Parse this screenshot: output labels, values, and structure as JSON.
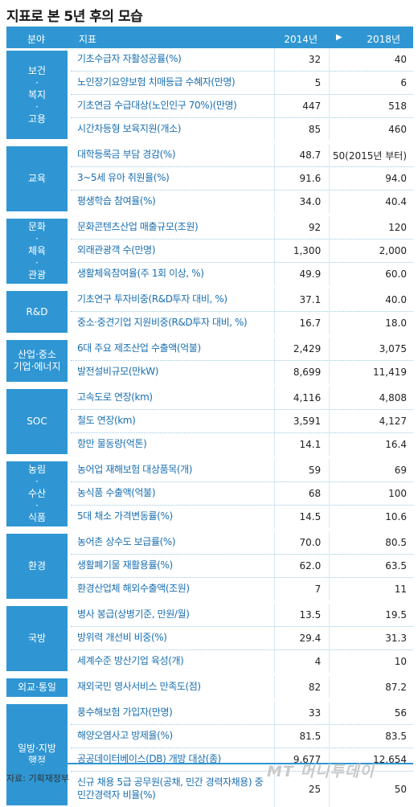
{
  "title": "지표로 본 5년 후의 모습",
  "header": {
    "field": "분야",
    "indicator": "지표",
    "y2014": "2014년",
    "arrow": "▶",
    "y2018": "2018년"
  },
  "groups": [
    {
      "category": "보건\n·\n복지\n·\n고용",
      "rows": [
        {
          "indicator": "기초수급자 자활성공률(%)",
          "v2014": "32",
          "v2018": "40"
        },
        {
          "indicator": "노인장기요양보험 치매등급 수혜자(만명)",
          "v2014": "5",
          "v2018": "6"
        },
        {
          "indicator": "기초연금 수급대상(노인인구 70%)(만명)",
          "v2014": "447",
          "v2018": "518"
        },
        {
          "indicator": "시간차등형 보육지원(개소)",
          "v2014": "85",
          "v2018": "460"
        }
      ]
    },
    {
      "category": "교육",
      "rows": [
        {
          "indicator": "대학등록금 부담 경감(%)",
          "v2014": "48.7",
          "v2018": "50(2015년 부터)"
        },
        {
          "indicator": "3~5세 유아 취원율(%)",
          "v2014": "91.6",
          "v2018": "94.0"
        },
        {
          "indicator": "평생학습 참여율(%)",
          "v2014": "34.0",
          "v2018": "40.4"
        }
      ]
    },
    {
      "category": "문화\n·\n체육\n·\n관광",
      "rows": [
        {
          "indicator": "문화콘텐츠산업 매출규모(조원)",
          "v2014": "92",
          "v2018": "120"
        },
        {
          "indicator": "외래관광객 수(만명)",
          "v2014": "1,300",
          "v2018": "2,000"
        },
        {
          "indicator": "생활체육참여율(주 1회 이상, %)",
          "v2014": "49.9",
          "v2018": "60.0"
        }
      ]
    },
    {
      "category": "R&D",
      "rows": [
        {
          "indicator": "기초연구 투자비중(R&D투자 대비, %)",
          "v2014": "37.1",
          "v2018": "40.0"
        },
        {
          "indicator": "중소·중견기업 지원비중(R&D투자 대비, %)",
          "v2014": "16.7",
          "v2018": "18.0"
        }
      ]
    },
    {
      "category": "산업·중소\n기업·에너지",
      "rows": [
        {
          "indicator": "6대 주요 제조산업 수출액(억불)",
          "v2014": "2,429",
          "v2018": "3,075"
        },
        {
          "indicator": "발전설비규모(만kW)",
          "v2014": "8,699",
          "v2018": "11,419"
        }
      ]
    },
    {
      "category": "SOC",
      "rows": [
        {
          "indicator": "고속도로 연장(km)",
          "v2014": "4,116",
          "v2018": "4,808"
        },
        {
          "indicator": "철도 연장(km)",
          "v2014": "3,591",
          "v2018": "4,127"
        },
        {
          "indicator": "항만 물동량(억톤)",
          "v2014": "14.1",
          "v2018": "16.4"
        }
      ]
    },
    {
      "category": "농림\n·\n수산\n·\n식품",
      "rows": [
        {
          "indicator": "농어업 재해보험 대상품목(개)",
          "v2014": "59",
          "v2018": "69"
        },
        {
          "indicator": "농식품 수출액(억불)",
          "v2014": "68",
          "v2018": "100"
        },
        {
          "indicator": "5대 채소 가격변동률(%)",
          "v2014": "14.5",
          "v2018": "10.6"
        }
      ]
    },
    {
      "category": "환경",
      "rows": [
        {
          "indicator": "농어촌 상수도 보급률(%)",
          "v2014": "70.0",
          "v2018": "80.5"
        },
        {
          "indicator": "생활폐기물 재활용률(%)",
          "v2014": "62.0",
          "v2018": "63.5"
        },
        {
          "indicator": "환경산업체 해외수출액(조원)",
          "v2014": "7",
          "v2018": "11"
        }
      ]
    },
    {
      "category": "국방",
      "rows": [
        {
          "indicator": "병사 봉급(상병기준, 만원/월)",
          "v2014": "13.5",
          "v2018": "19.5"
        },
        {
          "indicator": "방위력 개선비 비중(%)",
          "v2014": "29.4",
          "v2018": "31.3"
        },
        {
          "indicator": "세계수준 방산기업 육성(개)",
          "v2014": "4",
          "v2018": "10"
        }
      ]
    },
    {
      "category": "외교·통일",
      "rows": [
        {
          "indicator": "재외국민 영사서비스 만족도(점)",
          "v2014": "82",
          "v2018": "87.2"
        }
      ]
    },
    {
      "category": "일방·지방\n행정",
      "rows": [
        {
          "indicator": "풍수해보험 가입자(만명)",
          "v2014": "33",
          "v2018": "56"
        },
        {
          "indicator": "해양오염사고 방제율(%)",
          "v2014": "81.5",
          "v2018": "83.5"
        },
        {
          "indicator": "공공데이터베이스(DB) 개방 대상(종)",
          "v2014": "9,677",
          "v2018": "12,654"
        },
        {
          "indicator": "신규 채용 5급 공무원(공채, 민간 경력자채용) 중 민간경력자 비율(%)",
          "v2014": "25",
          "v2018": "50"
        }
      ]
    }
  ],
  "source": "자료: 기획재정부",
  "logo": "MT 머니투데이",
  "colors": {
    "accent": "#2f96d3",
    "indicator_text": "#1a6fb0"
  }
}
